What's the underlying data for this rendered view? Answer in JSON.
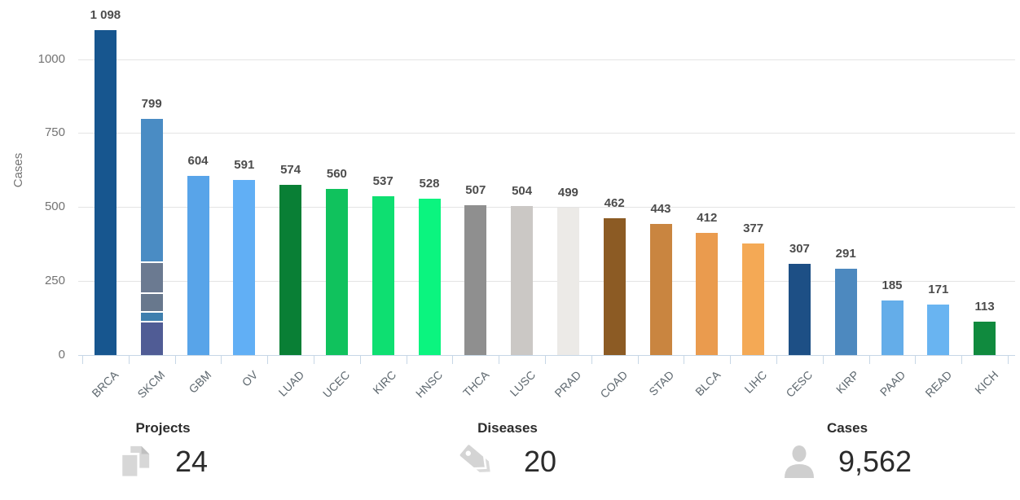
{
  "chart_data": {
    "type": "bar",
    "ylabel": "Cases",
    "ylim": [
      0,
      1100
    ],
    "grid": true,
    "legend": "none",
    "yticks": [
      {
        "value": 0,
        "label": "0"
      },
      {
        "value": 250,
        "label": "250"
      },
      {
        "value": 500,
        "label": "500"
      },
      {
        "value": 750,
        "label": "750"
      },
      {
        "value": 1000,
        "label": "1000"
      }
    ],
    "categories": [
      "BRCA",
      "SKCM",
      "GBM",
      "OV",
      "LUAD",
      "UCEC",
      "KIRC",
      "HNSC",
      "THCA",
      "LUSC",
      "PRAD",
      "COAD",
      "STAD",
      "BLCA",
      "LIHC",
      "CESC",
      "KIRP",
      "PAAD",
      "READ",
      "KICH"
    ],
    "values": [
      1098,
      799,
      604,
      591,
      574,
      560,
      537,
      528,
      507,
      504,
      499,
      462,
      443,
      412,
      377,
      307,
      291,
      185,
      171,
      113
    ],
    "value_labels": [
      "1 098",
      "799",
      "604",
      "591",
      "574",
      "560",
      "537",
      "528",
      "507",
      "504",
      "499",
      "462",
      "443",
      "412",
      "377",
      "307",
      "291",
      "185",
      "171",
      "113"
    ],
    "bar_colors": [
      "#17568f",
      "#4a8cc4",
      "#58a4e9",
      "#61aff5",
      "#097f35",
      "#10c25d",
      "#0edf71",
      "#0bf47f",
      "#8f8f8f",
      "#cbc8c5",
      "#eceae7",
      "#8c5b24",
      "#c98540",
      "#ea9b4e",
      "#f4a955",
      "#1d4f85",
      "#4d89bf",
      "#64ade9",
      "#69b4f1",
      "#108a3e"
    ],
    "stacked_bars": {
      "SKCM": [
        {
          "value": 110,
          "color": "#505c95"
        },
        {
          "value": 33,
          "color": "#3f7fae"
        },
        {
          "value": 63,
          "color": "#68788d"
        },
        {
          "value": 104,
          "color": "#6b7a91"
        },
        {
          "value": 489,
          "color": "#4a8cc4"
        }
      ]
    }
  },
  "stats": [
    {
      "id": "projects",
      "label": "Projects",
      "value": "24",
      "icon": "documents-icon"
    },
    {
      "id": "diseases",
      "label": "Diseases",
      "value": "20",
      "icon": "tags-icon"
    },
    {
      "id": "cases",
      "label": "Cases",
      "value": "9,562",
      "icon": "person-icon"
    }
  ]
}
